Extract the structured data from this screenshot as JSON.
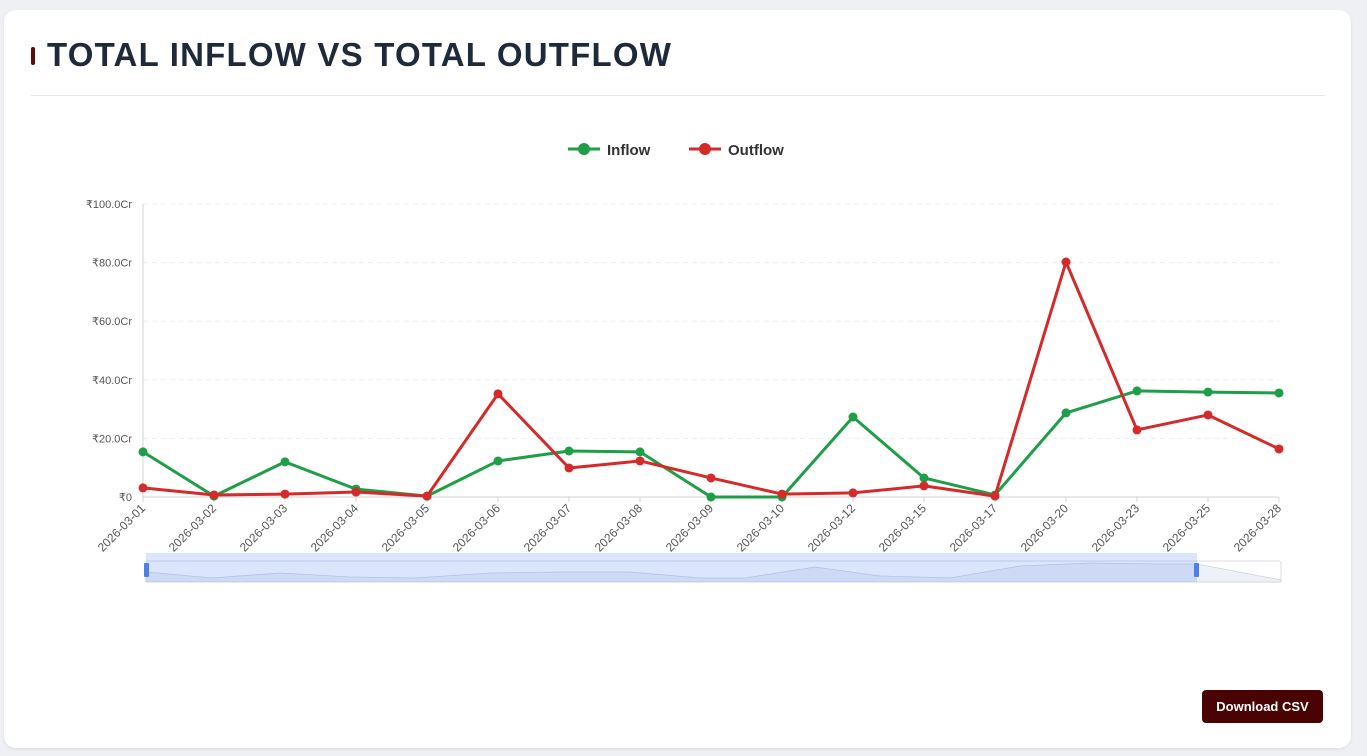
{
  "chart_data": {
    "type": "line",
    "title": "TOTAL INFLOW VS TOTAL OUTFLOW",
    "categories": [
      "2026-03-01",
      "2026-03-02",
      "2026-03-03",
      "2026-03-04",
      "2026-03-05",
      "2026-03-06",
      "2026-03-07",
      "2026-03-08",
      "2026-03-09",
      "2026-03-10",
      "2026-03-12",
      "2026-03-15",
      "2026-03-17",
      "2026-03-20",
      "2026-03-23",
      "2026-03-25",
      "2026-03-28"
    ],
    "series": [
      {
        "name": "Inflow",
        "color": "#1e9e46",
        "values": [
          15.4,
          0.3,
          12.0,
          2.7,
          0.3,
          12.3,
          15.7,
          15.4,
          0,
          0,
          27.3,
          6.5,
          0.7,
          28.7,
          36.2,
          35.8,
          35.5
        ]
      },
      {
        "name": "Outflow",
        "color": "#d42a2a",
        "values": [
          3.1,
          0.7,
          1.0,
          1.7,
          0.3,
          35.2,
          9.9,
          12.3,
          6.5,
          1.0,
          1.4,
          3.8,
          0.3,
          80.2,
          22.9,
          28.0,
          16.4
        ]
      }
    ],
    "ylim": [
      0,
      100
    ],
    "yticks": [
      {
        "value": 0,
        "label": "₹0"
      },
      {
        "value": 20,
        "label": "₹20.0Cr"
      },
      {
        "value": 40,
        "label": "₹40.0Cr"
      },
      {
        "value": 60,
        "label": "₹60.0Cr"
      },
      {
        "value": 80,
        "label": "₹80.0Cr"
      },
      {
        "value": 100,
        "label": "₹100.0Cr"
      }
    ],
    "grid": true,
    "legend": "top"
  },
  "download_button": "Download CSV"
}
